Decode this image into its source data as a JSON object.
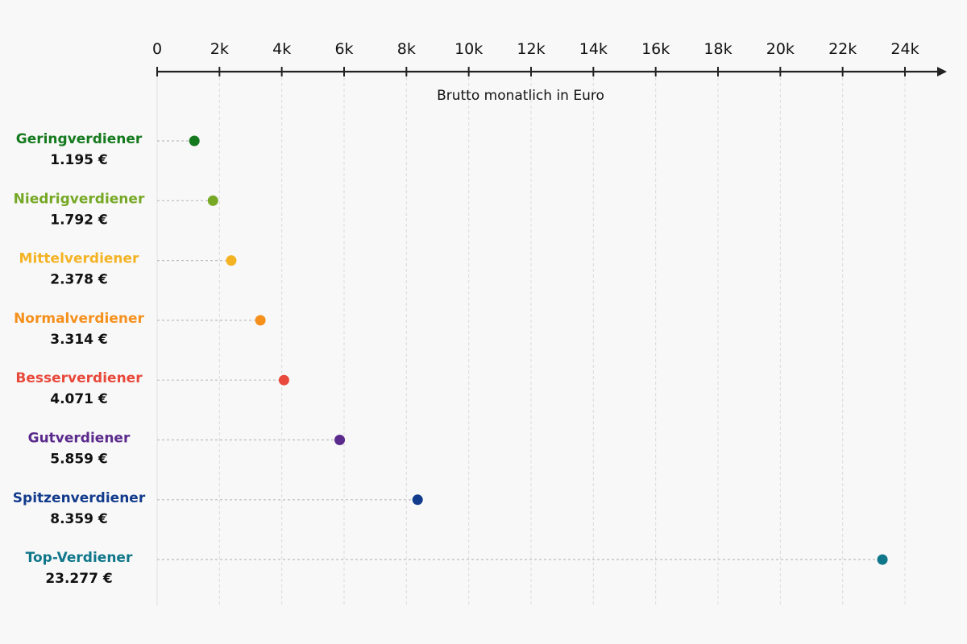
{
  "chart_data": {
    "type": "scatter",
    "title": "",
    "xlabel": "Brutto monatlich in Euro",
    "ylabel": "",
    "xlim": [
      0,
      24000
    ],
    "x_ticks": [
      0,
      2000,
      4000,
      6000,
      8000,
      10000,
      12000,
      14000,
      16000,
      18000,
      20000,
      22000,
      24000
    ],
    "x_tick_labels": [
      "0",
      "2k",
      "4k",
      "6k",
      "8k",
      "10k",
      "12k",
      "14k",
      "16k",
      "18k",
      "20k",
      "22k",
      "24k"
    ],
    "grid": true,
    "grid_axis": "x",
    "points": [
      {
        "label": "Geringverdiener",
        "value": 1195,
        "value_label": "1.195 €",
        "color": "#157a1e"
      },
      {
        "label": "Niedrigverdiener",
        "value": 1792,
        "value_label": "1.792 €",
        "color": "#76a825"
      },
      {
        "label": "Mittelverdiener",
        "value": 2378,
        "value_label": "2.378 €",
        "color": "#f4b323"
      },
      {
        "label": "Normalverdiener",
        "value": 3314,
        "value_label": "3.314 €",
        "color": "#f5901c"
      },
      {
        "label": "Besserverdiener",
        "value": 4071,
        "value_label": "4.071 €",
        "color": "#e8493b"
      },
      {
        "label": "Gutverdiener",
        "value": 5859,
        "value_label": "5.859 €",
        "color": "#5a2a8c"
      },
      {
        "label": "Spitzenverdiener",
        "value": 8359,
        "value_label": "8.359 €",
        "color": "#123b8c"
      },
      {
        "label": "Top-Verdiener",
        "value": 23277,
        "value_label": "23.277 €",
        "color": "#10778a"
      }
    ]
  }
}
